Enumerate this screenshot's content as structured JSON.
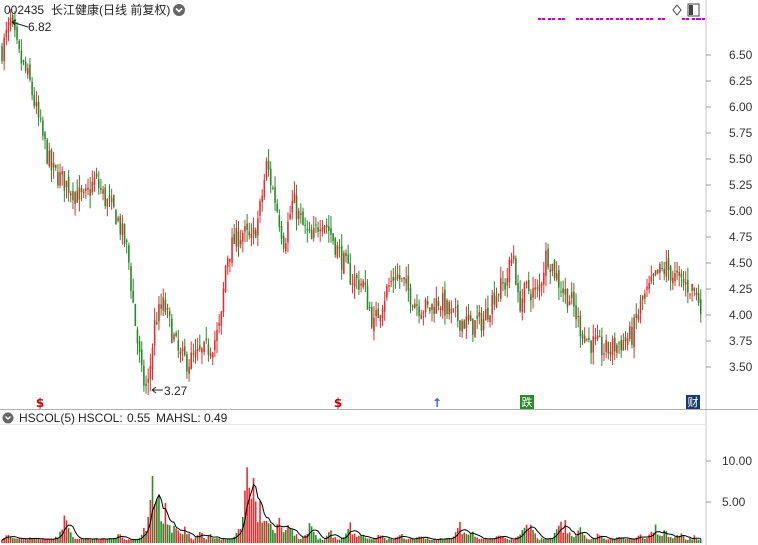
{
  "header": {
    "code": "002435",
    "name": "长江健康",
    "mode": "(日线 前复权)",
    "diamond_icon": "diamond-icon",
    "window_icon": "window-toggle-icon"
  },
  "colors": {
    "up": "#e03030",
    "down": "#2a8a2a",
    "ma": "#000000",
    "accent": "#cc00cc",
    "axis_bg": "#ffffff",
    "grid": "#cccccc"
  },
  "price_panel": {
    "max_label": "6.82",
    "min_label": "3.27",
    "markers": [
      {
        "label": "$",
        "color": "#cc0000"
      },
      {
        "label": "$",
        "color": "#cc0000"
      },
      {
        "label": "↑",
        "color": "#3366cc"
      },
      {
        "label": "跌",
        "color": "#2a8a2a"
      },
      {
        "label": "财",
        "color": "#1a3a6a"
      }
    ]
  },
  "indicator_panel": {
    "title": "HSCOL(5)",
    "hscol_label": "HSCOL:",
    "hscol_value": "0.55",
    "mahsl_label": "MAHSL:",
    "mahsl_value": "0.49"
  },
  "chart_data": [
    {
      "type": "candlestick",
      "title": "002435 长江健康 (日线 前复权)",
      "y_ticks": [
        "6.50",
        "6.25",
        "6.00",
        "5.75",
        "5.50",
        "5.25",
        "5.00",
        "4.75",
        "4.50",
        "4.25",
        "4.00",
        "3.75",
        "3.50"
      ],
      "ylim": [
        3.27,
        6.82
      ],
      "annotations": {
        "high": 6.82,
        "low": 3.27
      },
      "close_path": [
        [
          0,
          6.55
        ],
        [
          8,
          6.82
        ],
        [
          15,
          6.5
        ],
        [
          25,
          6.25
        ],
        [
          35,
          5.8
        ],
        [
          45,
          5.4
        ],
        [
          55,
          5.3
        ],
        [
          65,
          5.2
        ],
        [
          75,
          5.1
        ],
        [
          85,
          5.3
        ],
        [
          95,
          5.1
        ],
        [
          105,
          4.95
        ],
        [
          115,
          4.6
        ],
        [
          122,
          3.9
        ],
        [
          128,
          3.4
        ],
        [
          133,
          3.27
        ],
        [
          140,
          3.95
        ],
        [
          148,
          4.1
        ],
        [
          155,
          3.85
        ],
        [
          162,
          3.6
        ],
        [
          170,
          3.55
        ],
        [
          178,
          3.6
        ],
        [
          186,
          3.65
        ],
        [
          194,
          3.75
        ],
        [
          200,
          3.9
        ],
        [
          205,
          4.55
        ],
        [
          212,
          4.7
        ],
        [
          220,
          4.8
        ],
        [
          228,
          4.7
        ],
        [
          235,
          4.95
        ],
        [
          242,
          5.45
        ],
        [
          250,
          5.1
        ],
        [
          258,
          4.7
        ],
        [
          266,
          5.1
        ],
        [
          275,
          4.85
        ],
        [
          283,
          4.7
        ],
        [
          292,
          4.95
        ],
        [
          300,
          4.8
        ],
        [
          310,
          4.55
        ],
        [
          320,
          4.35
        ],
        [
          330,
          4.3
        ],
        [
          340,
          3.9
        ],
        [
          350,
          4.2
        ],
        [
          360,
          4.4
        ],
        [
          370,
          4.25
        ],
        [
          380,
          4.1
        ],
        [
          390,
          4.05
        ],
        [
          400,
          4.15
        ],
        [
          410,
          4.0
        ],
        [
          420,
          3.95
        ],
        [
          430,
          3.9
        ],
        [
          440,
          3.95
        ],
        [
          450,
          4.2
        ],
        [
          460,
          4.3
        ],
        [
          468,
          4.6
        ],
        [
          472,
          4.1
        ],
        [
          480,
          4.25
        ],
        [
          490,
          4.2
        ],
        [
          498,
          4.6
        ],
        [
          504,
          4.45
        ],
        [
          512,
          4.25
        ],
        [
          520,
          4.15
        ],
        [
          528,
          3.9
        ],
        [
          536,
          3.75
        ],
        [
          544,
          3.7
        ],
        [
          552,
          3.65
        ],
        [
          560,
          3.7
        ],
        [
          568,
          3.75
        ],
        [
          576,
          3.8
        ],
        [
          584,
          4.1
        ],
        [
          592,
          4.25
        ],
        [
          600,
          4.4
        ],
        [
          608,
          4.45
        ],
        [
          616,
          4.35
        ],
        [
          624,
          4.3
        ],
        [
          632,
          4.25
        ],
        [
          640,
          4.1
        ]
      ],
      "markers_at": [
        40,
        338,
        437,
        527,
        693
      ]
    },
    {
      "type": "bar",
      "title": "HSCOL(5)",
      "series": [
        {
          "name": "HSCOL",
          "value": 0.55
        },
        {
          "name": "MAHSL",
          "value": 0.49
        }
      ],
      "y_ticks": [
        "10.00",
        "5.00"
      ],
      "ylim": [
        0,
        14
      ],
      "spikes": [
        [
          8,
          1.0
        ],
        [
          30,
          0.8
        ],
        [
          65,
          3.5
        ],
        [
          120,
          1.2
        ],
        [
          153,
          9.3
        ],
        [
          158,
          6.5
        ],
        [
          165,
          5.5
        ],
        [
          175,
          3.5
        ],
        [
          185,
          2.0
        ],
        [
          200,
          1.5
        ],
        [
          210,
          1.0
        ],
        [
          248,
          12.0
        ],
        [
          252,
          10.0
        ],
        [
          260,
          6.0
        ],
        [
          270,
          4.5
        ],
        [
          280,
          3.5
        ],
        [
          290,
          3.0
        ],
        [
          310,
          2.5
        ],
        [
          330,
          1.5
        ],
        [
          350,
          2.5
        ],
        [
          360,
          1.5
        ],
        [
          380,
          1.2
        ],
        [
          400,
          1.5
        ],
        [
          420,
          1.2
        ],
        [
          460,
          2.5
        ],
        [
          470,
          2.0
        ],
        [
          500,
          1.5
        ],
        [
          525,
          3.0
        ],
        [
          530,
          2.5
        ],
        [
          560,
          3.0
        ],
        [
          565,
          2.8
        ],
        [
          580,
          1.8
        ],
        [
          600,
          1.5
        ],
        [
          620,
          1.2
        ],
        [
          640,
          1.0
        ],
        [
          655,
          2.5
        ],
        [
          665,
          1.8
        ],
        [
          680,
          1.5
        ],
        [
          695,
          0.8
        ]
      ]
    }
  ]
}
